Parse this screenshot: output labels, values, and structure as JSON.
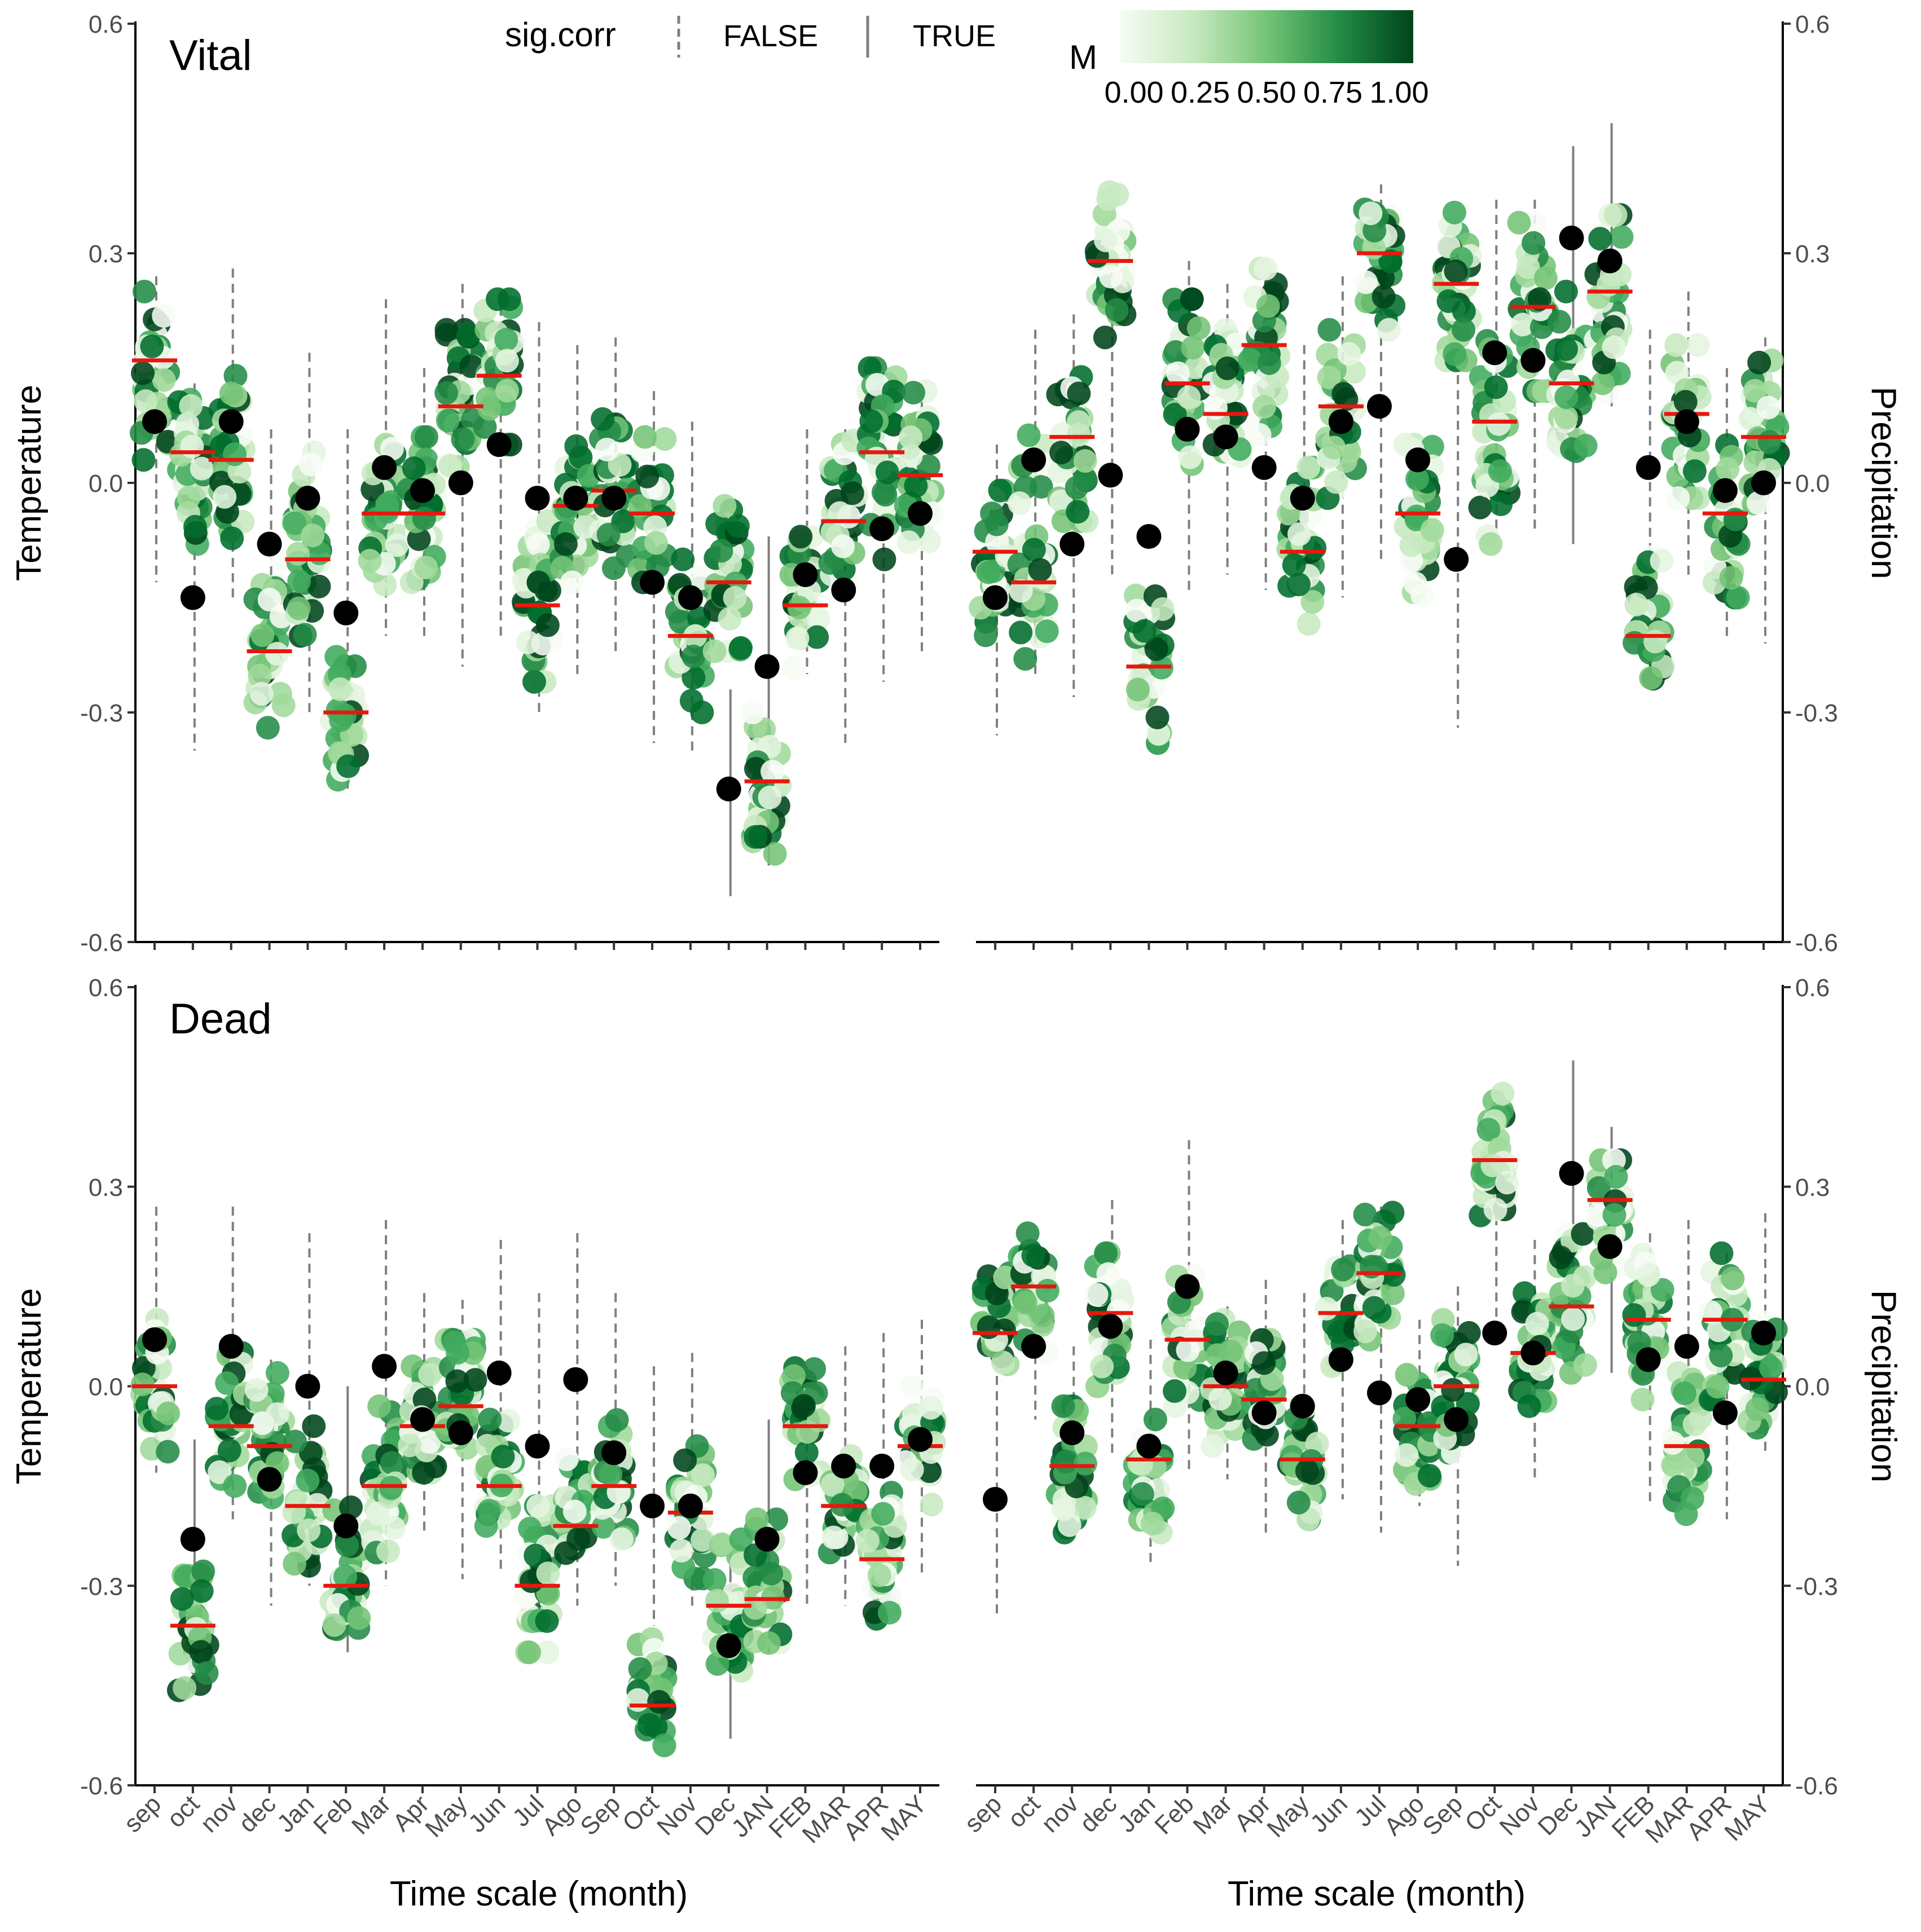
{
  "chart_data": {
    "type": "scatter",
    "legend": {
      "linetype_title": "sig.corr",
      "false_label": "FALSE",
      "true_label": "TRUE",
      "color_title": "M",
      "color_ticks": [
        "0.00",
        "0.25",
        "0.50",
        "0.75",
        "1.00"
      ],
      "color_low": "#f7fcf5",
      "color_high": "#00441b",
      "placement": "top"
    },
    "xlabel": "Time scale (month)",
    "months": [
      "sep",
      "oct",
      "nov",
      "dec",
      "Jan",
      "Feb",
      "Mar",
      "Apr",
      "May",
      "Jun",
      "Jul",
      "Ago",
      "Sep",
      "Oct",
      "Nov",
      "Dec",
      "JAN",
      "FEB",
      "MAR",
      "APR",
      "MAY"
    ],
    "ylim": [
      -0.6,
      0.6
    ],
    "ticks": [
      "0.6",
      "0.3",
      "0.0",
      "-0.3",
      "-0.6"
    ],
    "tick_values": [
      0.6,
      0.3,
      0.0,
      -0.3,
      -0.6
    ],
    "colors": {
      "median": "#e8170e",
      "observed": "#000000",
      "whisker": "#7f7f7f"
    },
    "panels": [
      {
        "row": "Vital",
        "variable": "Temperature",
        "ylabel": "Temperature",
        "axis_side": "left",
        "tag": "Vital",
        "observed": [
          0.08,
          -0.15,
          0.08,
          -0.08,
          -0.02,
          -0.17,
          0.02,
          -0.01,
          0.0,
          0.05,
          -0.02,
          -0.02,
          -0.02,
          -0.13,
          -0.15,
          -0.4,
          -0.24,
          -0.12,
          -0.14,
          -0.06,
          -0.04
        ],
        "median": [
          0.16,
          0.04,
          0.03,
          -0.22,
          -0.1,
          -0.3,
          -0.04,
          -0.04,
          0.1,
          0.14,
          -0.16,
          -0.03,
          -0.01,
          -0.04,
          -0.2,
          -0.13,
          -0.39,
          -0.16,
          -0.05,
          0.04,
          0.01
        ],
        "whisker_low": [
          -0.13,
          -0.35,
          -0.15,
          -0.28,
          -0.3,
          -0.4,
          -0.2,
          -0.2,
          -0.24,
          -0.2,
          -0.3,
          -0.25,
          -0.22,
          -0.34,
          -0.35,
          -0.54,
          -0.5,
          -0.25,
          -0.34,
          -0.26,
          -0.22
        ],
        "whisker_high": [
          0.27,
          0.13,
          0.28,
          0.07,
          0.17,
          0.07,
          0.24,
          0.15,
          0.26,
          0.25,
          0.21,
          0.18,
          0.19,
          0.12,
          0.08,
          -0.27,
          -0.07,
          0.07,
          0.07,
          0.12,
          0.13
        ],
        "significant": [
          false,
          false,
          false,
          false,
          false,
          false,
          false,
          false,
          false,
          false,
          false,
          false,
          false,
          false,
          false,
          true,
          true,
          false,
          false,
          false,
          false
        ],
        "spread_low": [
          0.03,
          -0.08,
          -0.08,
          -0.32,
          -0.2,
          -0.4,
          -0.15,
          -0.13,
          0.02,
          0.05,
          -0.26,
          -0.13,
          -0.12,
          -0.13,
          -0.3,
          -0.22,
          -0.49,
          -0.25,
          -0.13,
          -0.1,
          -0.08
        ],
        "spread_high": [
          0.25,
          0.12,
          0.14,
          -0.1,
          0.04,
          -0.2,
          0.05,
          0.06,
          0.2,
          0.24,
          -0.05,
          0.06,
          0.1,
          0.06,
          -0.1,
          -0.03,
          -0.3,
          -0.06,
          0.06,
          0.15,
          0.12
        ]
      },
      {
        "row": "Vital",
        "variable": "Precipitation",
        "ylabel": "Precipitation",
        "axis_side": "right",
        "tag": "",
        "observed": [
          -0.15,
          0.03,
          -0.08,
          0.01,
          -0.07,
          0.07,
          0.06,
          0.02,
          -0.02,
          0.08,
          0.1,
          0.03,
          -0.1,
          0.17,
          0.16,
          0.32,
          0.29,
          0.02,
          0.08,
          -0.01,
          0.0
        ],
        "median": [
          -0.09,
          -0.13,
          0.06,
          0.29,
          -0.24,
          0.13,
          0.09,
          0.18,
          -0.09,
          0.1,
          0.3,
          -0.04,
          0.26,
          0.08,
          0.23,
          0.13,
          0.25,
          -0.2,
          0.09,
          -0.04,
          0.06
        ],
        "whisker_low": [
          -0.33,
          -0.25,
          -0.28,
          -0.12,
          -0.27,
          -0.14,
          -0.12,
          -0.14,
          -0.13,
          -0.15,
          -0.1,
          -0.15,
          -0.32,
          -0.06,
          -0.06,
          -0.08,
          0.1,
          -0.26,
          -0.12,
          -0.2,
          -0.21
        ],
        "whisker_high": [
          0.05,
          0.2,
          0.22,
          0.37,
          -0.2,
          0.29,
          0.26,
          0.26,
          0.18,
          0.27,
          0.39,
          0.05,
          0.32,
          0.37,
          0.37,
          0.44,
          0.47,
          0.2,
          0.25,
          0.15,
          0.19
        ],
        "significant": [
          false,
          false,
          false,
          false,
          false,
          false,
          false,
          false,
          false,
          false,
          false,
          false,
          false,
          false,
          false,
          true,
          true,
          false,
          false,
          false,
          false
        ],
        "spread_low": [
          -0.2,
          -0.23,
          -0.05,
          0.19,
          -0.34,
          0.02,
          -0.01,
          0.05,
          -0.19,
          -0.02,
          0.2,
          -0.15,
          0.16,
          -0.08,
          0.12,
          0.03,
          0.1,
          -0.28,
          -0.02,
          -0.15,
          -0.05
        ],
        "spread_high": [
          -0.01,
          0.07,
          0.16,
          0.38,
          -0.14,
          0.24,
          0.2,
          0.28,
          0.02,
          0.2,
          0.38,
          0.05,
          0.36,
          0.2,
          0.34,
          0.25,
          0.35,
          -0.09,
          0.18,
          0.05,
          0.16
        ]
      },
      {
        "row": "Dead",
        "variable": "Temperature",
        "ylabel": "Temperature",
        "axis_side": "left",
        "tag": "Dead",
        "observed": [
          0.07,
          -0.23,
          0.06,
          -0.14,
          0.0,
          -0.21,
          0.03,
          -0.05,
          -0.07,
          0.02,
          -0.09,
          0.01,
          -0.1,
          -0.18,
          -0.18,
          -0.39,
          -0.23,
          -0.13,
          -0.12,
          -0.12,
          -0.08
        ],
        "median": [
          0.0,
          -0.36,
          -0.06,
          -0.09,
          -0.18,
          -0.3,
          -0.15,
          -0.06,
          -0.03,
          -0.15,
          -0.3,
          -0.21,
          -0.15,
          -0.48,
          -0.19,
          -0.33,
          -0.32,
          -0.06,
          -0.18,
          -0.26,
          -0.09
        ],
        "whisker_low": [
          -0.13,
          -0.42,
          -0.2,
          -0.33,
          -0.3,
          -0.4,
          -0.3,
          -0.22,
          -0.29,
          -0.28,
          -0.33,
          -0.33,
          -0.3,
          -0.36,
          -0.33,
          -0.53,
          -0.4,
          -0.33,
          -0.33,
          -0.3,
          -0.28
        ],
        "whisker_high": [
          0.27,
          -0.08,
          0.27,
          0.04,
          0.23,
          0.0,
          0.25,
          0.14,
          0.13,
          0.22,
          0.14,
          0.23,
          0.14,
          0.03,
          0.05,
          -0.23,
          -0.05,
          0.03,
          0.06,
          0.08,
          0.1
        ],
        "significant": [
          false,
          true,
          false,
          false,
          false,
          true,
          false,
          false,
          false,
          false,
          false,
          false,
          false,
          false,
          false,
          true,
          true,
          false,
          false,
          false,
          false
        ],
        "spread_low": [
          -0.1,
          -0.46,
          -0.15,
          -0.17,
          -0.27,
          -0.39,
          -0.25,
          -0.13,
          -0.1,
          -0.22,
          -0.4,
          -0.27,
          -0.23,
          -0.54,
          -0.3,
          -0.44,
          -0.4,
          -0.14,
          -0.25,
          -0.35,
          -0.18
        ],
        "spread_high": [
          0.1,
          -0.25,
          0.05,
          0.02,
          -0.06,
          -0.17,
          -0.03,
          0.03,
          0.07,
          -0.05,
          -0.18,
          -0.1,
          -0.05,
          -0.38,
          -0.09,
          -0.23,
          -0.2,
          0.04,
          -0.1,
          -0.16,
          0.01
        ]
      },
      {
        "row": "Dead",
        "variable": "Precipitation",
        "ylabel": "Precipitation",
        "axis_side": "right",
        "tag": "",
        "observed": [
          -0.17,
          0.06,
          -0.07,
          0.09,
          -0.09,
          0.15,
          0.02,
          -0.04,
          -0.03,
          0.04,
          -0.01,
          -0.02,
          -0.05,
          0.08,
          0.05,
          0.32,
          0.21,
          0.04,
          0.06,
          -0.04,
          0.08
        ],
        "median": [
          0.08,
          0.15,
          -0.12,
          0.11,
          -0.11,
          0.07,
          0.0,
          -0.02,
          -0.11,
          0.11,
          0.17,
          -0.06,
          0.0,
          0.34,
          0.05,
          0.12,
          0.28,
          0.1,
          -0.09,
          0.1,
          0.01
        ],
        "whisker_low": [
          -0.35,
          -0.05,
          -0.2,
          -0.1,
          -0.27,
          -0.13,
          -0.14,
          -0.22,
          -0.2,
          -0.17,
          -0.22,
          -0.18,
          -0.27,
          0.08,
          -0.14,
          0.12,
          0.02,
          -0.18,
          -0.16,
          -0.2,
          -0.1
        ],
        "whisker_high": [
          0.13,
          0.23,
          0.06,
          0.28,
          0.07,
          0.37,
          0.12,
          0.16,
          0.14,
          0.25,
          0.27,
          0.1,
          0.15,
          0.37,
          0.22,
          0.49,
          0.39,
          0.23,
          0.25,
          0.2,
          0.26
        ],
        "significant": [
          false,
          false,
          false,
          false,
          false,
          false,
          false,
          false,
          false,
          false,
          false,
          false,
          false,
          false,
          false,
          true,
          true,
          false,
          false,
          false,
          false
        ],
        "spread_low": [
          0.03,
          0.05,
          -0.22,
          0.0,
          -0.22,
          -0.03,
          -0.09,
          -0.1,
          -0.2,
          0.03,
          0.07,
          -0.17,
          -0.1,
          0.24,
          -0.03,
          0.02,
          0.17,
          -0.02,
          -0.2,
          -0.02,
          -0.09
        ],
        "spread_high": [
          0.17,
          0.23,
          -0.03,
          0.2,
          -0.05,
          0.17,
          0.1,
          0.07,
          -0.03,
          0.2,
          0.27,
          0.03,
          0.1,
          0.44,
          0.14,
          0.23,
          0.34,
          0.2,
          0.02,
          0.2,
          0.1
        ]
      }
    ]
  }
}
